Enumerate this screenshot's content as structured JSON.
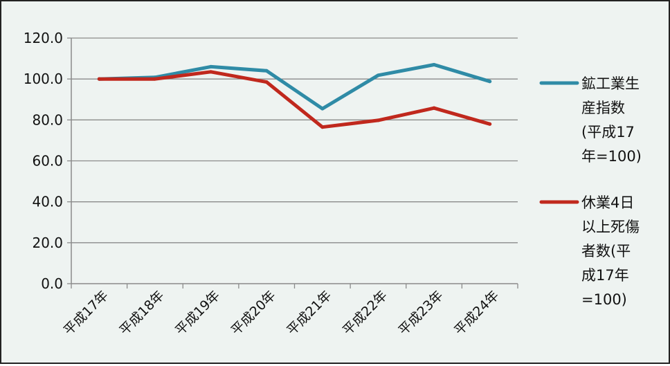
{
  "chart_data": {
    "type": "line",
    "categories": [
      "平成17年",
      "平成18年",
      "平成19年",
      "平成20年",
      "平成21年",
      "平成22年",
      "平成23年",
      "平成24年"
    ],
    "series": [
      {
        "name": "鉱工業生産指数(平成17年=100)",
        "legend_lines": [
          "鉱工業生",
          "産指数",
          "(平成17",
          "年=100)"
        ],
        "color": "#2f8ba6",
        "values": [
          100.0,
          100.8,
          106.0,
          104.0,
          85.5,
          101.8,
          107.0,
          98.8
        ]
      },
      {
        "name": "休業4日以上死傷者数(平成17年=100)",
        "legend_lines": [
          "休業4日",
          "以上死傷",
          "者数(平",
          "成17年",
          "=100)"
        ],
        "color": "#c0281d",
        "values": [
          100.0,
          100.0,
          103.5,
          98.5,
          76.5,
          79.8,
          85.8,
          78.0
        ]
      }
    ],
    "ylim": [
      0,
      120
    ],
    "yticks": [
      "0.0",
      "20.0",
      "40.0",
      "60.0",
      "80.0",
      "100.0",
      "120.0"
    ],
    "title": "",
    "xlabel": "",
    "ylabel": "",
    "grid": true,
    "legend_position": "right"
  }
}
